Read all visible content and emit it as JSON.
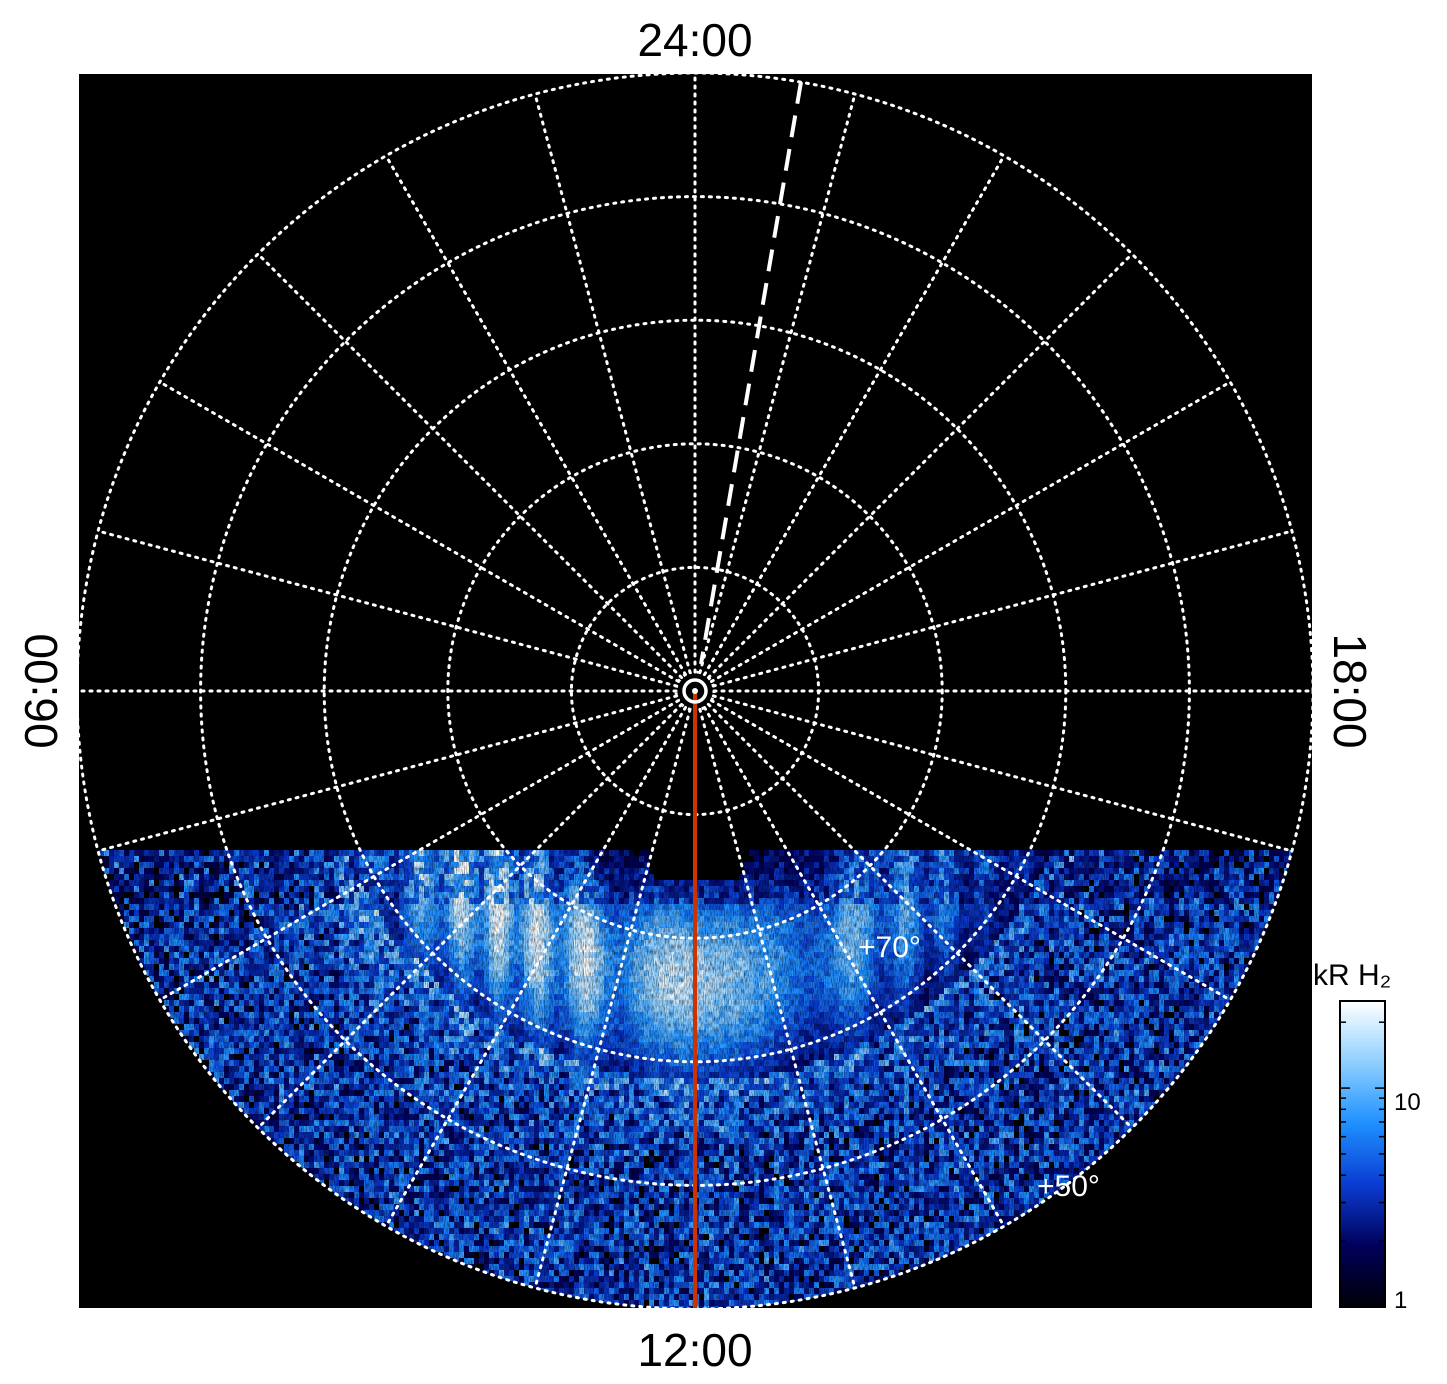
{
  "chart_data": {
    "type": "heatmap",
    "title": "",
    "projection": "polar",
    "local_time_labels": {
      "top": "24:00",
      "bottom": "12:00",
      "left": "06:00",
      "right": "18:00"
    },
    "latitude_labels": [
      {
        "text": "+70°",
        "latitude": 70
      },
      {
        "text": "+50°",
        "latitude": 50
      }
    ],
    "latitude_circles_deg": [
      90,
      80,
      70,
      60,
      50,
      40
    ],
    "grid": true,
    "grid_style": "dotted",
    "meridian_spacing_hours": 1,
    "colorbar": {
      "title": "kR H₂",
      "scale": "log",
      "range": [
        1,
        25
      ],
      "tick_labels": [
        "1",
        "10"
      ],
      "ticks": [
        1,
        10
      ],
      "colors": [
        "#000008",
        "#00005a",
        "#0a3cd2",
        "#1e90ff",
        "#8fd0ff",
        "#ffffff"
      ]
    },
    "coverage": "dayside hemisphere below ~-0.25 R offset from pole; emission band peaking near ~70° latitude",
    "overlays": [
      {
        "name": "noon meridian",
        "color": "#cc3300",
        "local_time": "12:00"
      },
      {
        "name": "dashed reference line",
        "color": "#ffffff",
        "style": "dashed",
        "local_time_approx": "23:30"
      }
    ]
  }
}
